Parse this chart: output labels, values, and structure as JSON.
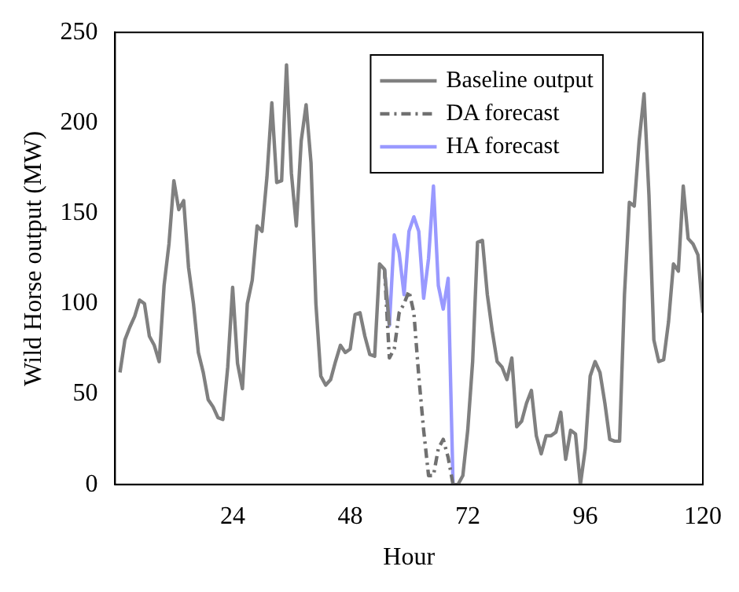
{
  "chart_data": {
    "type": "line",
    "xlabel": "Hour",
    "ylabel": "Wild Horse output (MW)",
    "xlim": [
      0,
      120
    ],
    "xticks": [
      24,
      48,
      72,
      96,
      120
    ],
    "ylim": [
      0,
      250
    ],
    "yticks": [
      0,
      50,
      100,
      150,
      200,
      250
    ],
    "grid": false,
    "legend": "top right",
    "marker": "none",
    "series": [
      {
        "name": "Baseline output",
        "color": "#808080",
        "line_style": "solid",
        "x": [
          1,
          2,
          3,
          4,
          5,
          6,
          7,
          8,
          9,
          10,
          11,
          12,
          13,
          14,
          15,
          16,
          17,
          18,
          19,
          20,
          21,
          22,
          23,
          24,
          25,
          26,
          27,
          28,
          29,
          30,
          31,
          32,
          33,
          34,
          35,
          36,
          37,
          38,
          39,
          40,
          41,
          42,
          43,
          44,
          45,
          46,
          47,
          48,
          49,
          50,
          51,
          52,
          53,
          54,
          55,
          56,
          57,
          58,
          59,
          60,
          61,
          62,
          63,
          64,
          65,
          66,
          67,
          68,
          69,
          70,
          71,
          72,
          73,
          74,
          75,
          76,
          77,
          78,
          79,
          80,
          81,
          82,
          83,
          84,
          85,
          86,
          87,
          88,
          89,
          90,
          91,
          92,
          93,
          94,
          95,
          96,
          97,
          98,
          99,
          100,
          101,
          102,
          103,
          104,
          105,
          106,
          107,
          108,
          109,
          110,
          111,
          112,
          113,
          114,
          115,
          116,
          117,
          118,
          119,
          120
        ],
        "values": [
          62,
          80,
          87,
          93,
          102,
          100,
          82,
          77,
          68,
          110,
          133,
          168,
          152,
          157,
          120,
          100,
          73,
          62,
          47,
          43,
          37,
          36,
          65,
          109,
          67,
          53,
          100,
          113,
          143,
          140,
          170,
          211,
          167,
          168,
          232,
          172,
          143,
          190,
          210,
          178,
          100,
          60,
          55,
          58,
          68,
          77,
          73,
          75,
          94,
          95,
          82,
          72,
          71,
          122,
          119,
          88,
          null,
          null,
          null,
          null,
          null,
          null,
          null,
          null,
          null,
          null,
          null,
          null,
          0,
          0,
          5,
          30,
          68,
          134,
          135,
          105,
          85,
          68,
          65,
          58,
          70,
          32,
          35,
          45,
          52,
          27,
          17,
          27,
          27,
          29,
          40,
          14,
          30,
          28,
          0,
          20,
          60,
          68,
          62,
          45,
          25,
          24,
          24,
          105,
          156,
          154,
          190,
          216,
          160,
          80,
          68,
          69,
          90,
          122,
          118,
          165,
          136,
          133,
          127,
          95
        ]
      },
      {
        "name": "DA forecast",
        "color": "#707070",
        "line_style": "dashed",
        "x": [
          55,
          56,
          57,
          58,
          59,
          60,
          61,
          62,
          63,
          64,
          65,
          66,
          67,
          68,
          69
        ],
        "values": [
          119,
          70,
          75,
          95,
          100,
          107,
          95,
          60,
          30,
          5,
          5,
          20,
          25,
          15,
          0
        ]
      },
      {
        "name": "HA forecast",
        "color": "#9999ff",
        "line_style": "solid",
        "x": [
          55,
          56,
          57,
          58,
          59,
          60,
          61,
          62,
          63,
          64,
          65,
          66,
          67,
          68,
          69
        ],
        "values": [
          119,
          88,
          138,
          128,
          105,
          140,
          148,
          140,
          103,
          125,
          165,
          110,
          97,
          114,
          0
        ]
      }
    ]
  }
}
